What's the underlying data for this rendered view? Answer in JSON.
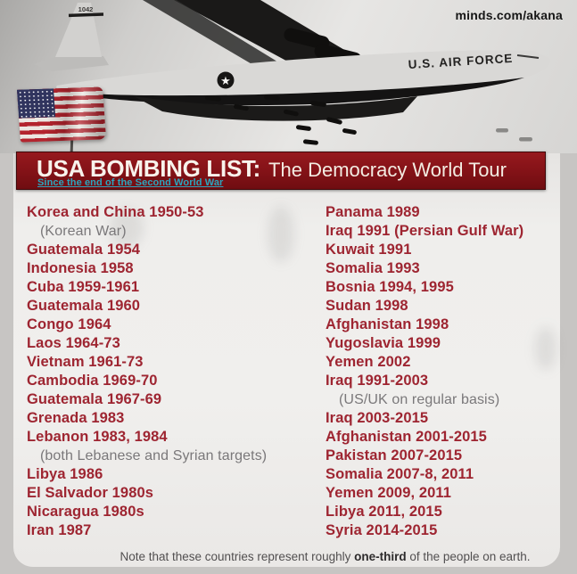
{
  "watermark": "minds.com/akana",
  "photo": {
    "tail_number": "1042",
    "fuselage_text": "U.S. AIR FORCE"
  },
  "banner": {
    "title": "USA BOMBING LIST:",
    "title_rest": "The Democracy World Tour",
    "tagline": "Since the end of the Second World War"
  },
  "colors": {
    "banner_red": "#861318",
    "entry_red": "#9e2531",
    "tagline_teal": "#2ba6be",
    "sub_note_gray": "#7a787a"
  },
  "columns": {
    "left": [
      {
        "text": "Korea and China 1950-53",
        "sub": false
      },
      {
        "text": "(Korean War)",
        "sub": true
      },
      {
        "text": "Guatemala 1954",
        "sub": false
      },
      {
        "text": "Indonesia 1958",
        "sub": false
      },
      {
        "text": "Cuba 1959-1961",
        "sub": false
      },
      {
        "text": "Guatemala 1960",
        "sub": false
      },
      {
        "text": "Congo 1964",
        "sub": false
      },
      {
        "text": "Laos 1964-73",
        "sub": false
      },
      {
        "text": "Vietnam 1961-73",
        "sub": false
      },
      {
        "text": "Cambodia 1969-70",
        "sub": false
      },
      {
        "text": "Guatemala 1967-69",
        "sub": false
      },
      {
        "text": "Grenada 1983",
        "sub": false
      },
      {
        "text": "Lebanon 1983, 1984",
        "sub": false
      },
      {
        "text": "(both Lebanese and Syrian targets)",
        "sub": true
      },
      {
        "text": "Libya 1986",
        "sub": false
      },
      {
        "text": "El Salvador 1980s",
        "sub": false
      },
      {
        "text": "Nicaragua 1980s",
        "sub": false
      },
      {
        "text": "Iran 1987",
        "sub": false
      }
    ],
    "right": [
      {
        "text": "Panama 1989",
        "sub": false
      },
      {
        "text": "Iraq 1991 (Persian Gulf War)",
        "sub": false
      },
      {
        "text": "Kuwait 1991",
        "sub": false
      },
      {
        "text": "Somalia 1993",
        "sub": false
      },
      {
        "text": "Bosnia 1994, 1995",
        "sub": false
      },
      {
        "text": "Sudan 1998",
        "sub": false
      },
      {
        "text": "Afghanistan 1998",
        "sub": false
      },
      {
        "text": "Yugoslavia 1999",
        "sub": false
      },
      {
        "text": "Yemen 2002",
        "sub": false
      },
      {
        "text": "Iraq 1991-2003",
        "sub": false
      },
      {
        "text": "(US/UK on regular basis)",
        "sub": true
      },
      {
        "text": "Iraq 2003-2015",
        "sub": false
      },
      {
        "text": "Afghanistan 2001-2015",
        "sub": false
      },
      {
        "text": "Pakistan 2007-2015",
        "sub": false
      },
      {
        "text": "Somalia 2007-8, 2011",
        "sub": false
      },
      {
        "text": "Yemen 2009, 2011",
        "sub": false
      },
      {
        "text": "Libya 2011, 2015",
        "sub": false
      },
      {
        "text": "Syria 2014-2015",
        "sub": false
      }
    ]
  },
  "footer": {
    "note_prefix": "Note that these countries represent roughly ",
    "note_bold": "one-third",
    "note_suffix": " of the people on earth."
  }
}
